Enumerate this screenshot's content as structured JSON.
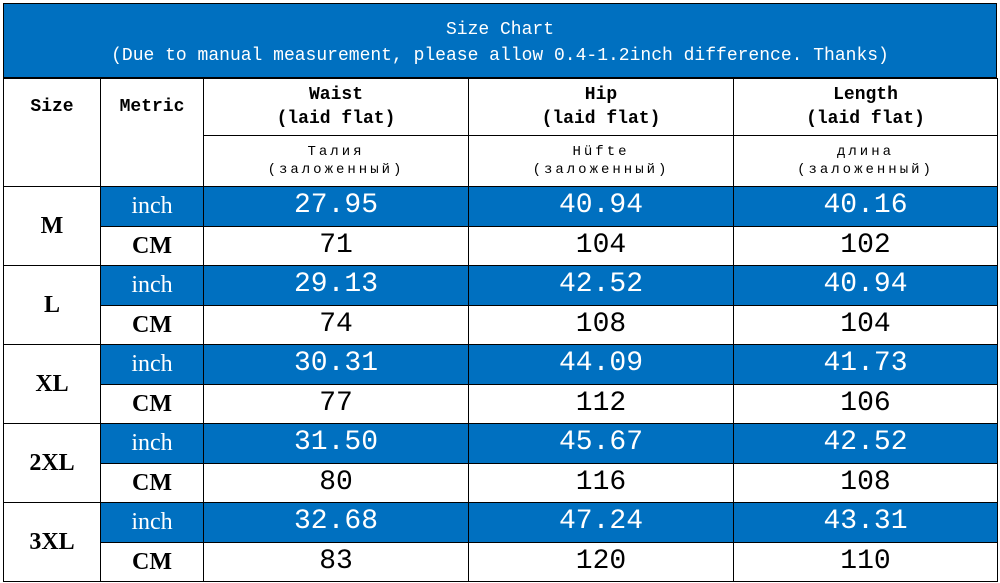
{
  "header": {
    "title": "Size Chart",
    "note": "(Due to manual measurement, please allow 0.4-1.2inch difference. Thanks)"
  },
  "columns": {
    "size": "Size",
    "metric": "Metric",
    "measures": [
      {
        "name": "Waist",
        "note": "(laid flat)",
        "local": "Талия",
        "local_note": "(заложенный)"
      },
      {
        "name": "Hip",
        "note": "(laid flat)",
        "local": "Hüfte",
        "local_note": "(заложенный)"
      },
      {
        "name": "Length",
        "note": "(laid flat)",
        "local": "длина",
        "local_note": "(заложенный)"
      }
    ]
  },
  "rows": [
    {
      "size": "M",
      "lines": [
        {
          "metric": "inch",
          "values": [
            "27.95",
            "40.94",
            "40.16"
          ]
        },
        {
          "metric": "CM",
          "values": [
            "71",
            "104",
            "102"
          ]
        }
      ]
    },
    {
      "size": "L",
      "lines": [
        {
          "metric": "inch",
          "values": [
            "29.13",
            "42.52",
            "40.94"
          ]
        },
        {
          "metric": "CM",
          "values": [
            "74",
            "108",
            "104"
          ]
        }
      ]
    },
    {
      "size": "XL",
      "lines": [
        {
          "metric": "inch",
          "values": [
            "30.31",
            "44.09",
            "41.73"
          ]
        },
        {
          "metric": "CM",
          "values": [
            "77",
            "112",
            "106"
          ]
        }
      ]
    },
    {
      "size": "2XL",
      "lines": [
        {
          "metric": "inch",
          "values": [
            "31.50",
            "45.67",
            "42.52"
          ]
        },
        {
          "metric": "CM",
          "values": [
            "80",
            "116",
            "108"
          ]
        }
      ]
    },
    {
      "size": "3XL",
      "lines": [
        {
          "metric": "inch",
          "values": [
            "32.68",
            "47.24",
            "43.31"
          ]
        },
        {
          "metric": "CM",
          "values": [
            "83",
            "120",
            "110"
          ]
        }
      ]
    }
  ]
}
